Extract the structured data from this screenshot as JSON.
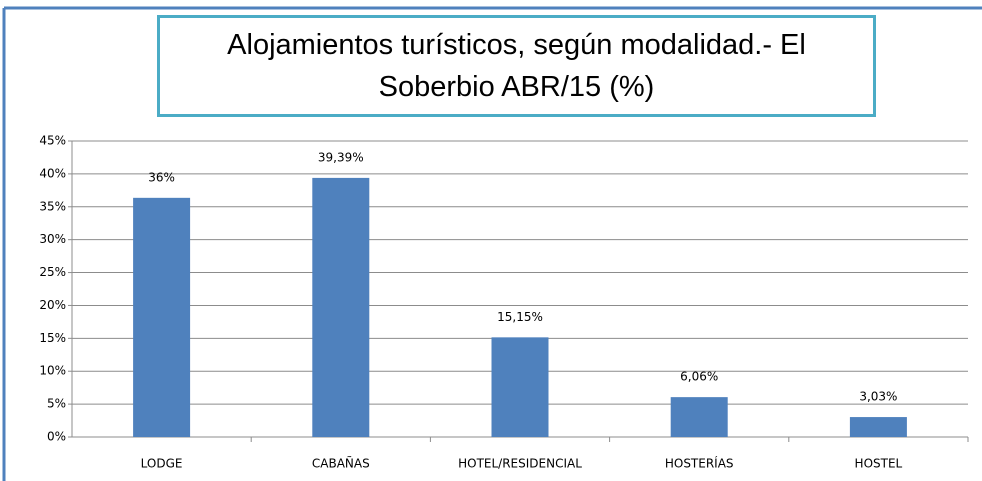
{
  "chart_data": {
    "type": "bar",
    "title": "Alojamientos turísticos, según modalidad.- El Soberbio ABR/15 (%)",
    "categories": [
      "LODGE",
      "CABAÑAS",
      "HOTEL/RESIDENCIAL",
      "HOSTERÍAS",
      "HOSTEL"
    ],
    "values": [
      36.36,
      39.39,
      15.15,
      6.06,
      3.03
    ],
    "value_labels": [
      "36%",
      "39,39%",
      "15,15%",
      "6,06%",
      "3,03%"
    ],
    "color": "#4f81bd",
    "ylim": [
      0,
      45
    ],
    "yticks": [
      {
        "value": 0,
        "label": "0%"
      },
      {
        "value": 5,
        "label": "5%"
      },
      {
        "value": 10,
        "label": "10%"
      },
      {
        "value": 15,
        "label": "15%"
      },
      {
        "value": 20,
        "label": "20%"
      },
      {
        "value": 25,
        "label": "25%"
      },
      {
        "value": 30,
        "label": "30%"
      },
      {
        "value": 35,
        "label": "35%"
      },
      {
        "value": 40,
        "label": "40%"
      },
      {
        "value": 45,
        "label": "45%"
      }
    ],
    "grid": true
  }
}
